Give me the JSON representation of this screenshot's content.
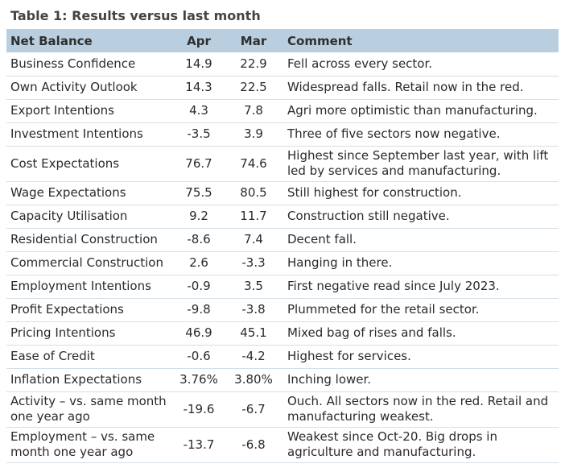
{
  "title": "Table 1: Results versus last month",
  "columns": {
    "label": "Net Balance",
    "apr": "Apr",
    "mar": "Mar",
    "comment": "Comment"
  },
  "rows": [
    {
      "label": "Business Confidence",
      "apr": "14.9",
      "mar": "22.9",
      "comment": "Fell across every sector."
    },
    {
      "label": "Own Activity Outlook",
      "apr": "14.3",
      "mar": "22.5",
      "comment": "Widespread falls. Retail now in the red."
    },
    {
      "label": "Export Intentions",
      "apr": "4.3",
      "mar": "7.8",
      "comment": "Agri more optimistic than manufacturing."
    },
    {
      "label": "Investment Intentions",
      "apr": "-3.5",
      "mar": "3.9",
      "comment": "Three of five sectors now negative."
    },
    {
      "label": "Cost Expectations",
      "apr": "76.7",
      "mar": "74.6",
      "comment": "Highest since September last year, with lift led by services and manufacturing."
    },
    {
      "label": "Wage Expectations",
      "apr": "75.5",
      "mar": "80.5",
      "comment": "Still highest for construction."
    },
    {
      "label": "Capacity Utilisation",
      "apr": "9.2",
      "mar": "11.7",
      "comment": "Construction still negative."
    },
    {
      "label": "Residential Construction",
      "apr": "-8.6",
      "mar": "7.4",
      "comment": "Decent fall."
    },
    {
      "label": "Commercial Construction",
      "apr": "2.6",
      "mar": "-3.3",
      "comment": "Hanging in there."
    },
    {
      "label": "Employment Intentions",
      "apr": "-0.9",
      "mar": "3.5",
      "comment": "First negative read since July 2023."
    },
    {
      "label": "Profit Expectations",
      "apr": "-9.8",
      "mar": "-3.8",
      "comment": "Plummeted for the retail sector."
    },
    {
      "label": "Pricing Intentions",
      "apr": "46.9",
      "mar": "45.1",
      "comment": "Mixed bag of rises and falls."
    },
    {
      "label": "Ease of Credit",
      "apr": "-0.6",
      "mar": "-4.2",
      "comment": "Highest for services."
    },
    {
      "label": "Inflation Expectations",
      "apr": "3.76%",
      "mar": "3.80%",
      "comment": "Inching lower."
    },
    {
      "label": "Activity – vs. same month one year ago",
      "apr": "-19.6",
      "mar": "-6.7",
      "comment": "Ouch. All sectors now in the red. Retail and manufacturing weakest."
    },
    {
      "label": "Employment – vs. same month one year ago",
      "apr": "-13.7",
      "mar": "-6.8",
      "comment": "Weakest since Oct-20. Big drops in agriculture and manufacturing."
    }
  ]
}
